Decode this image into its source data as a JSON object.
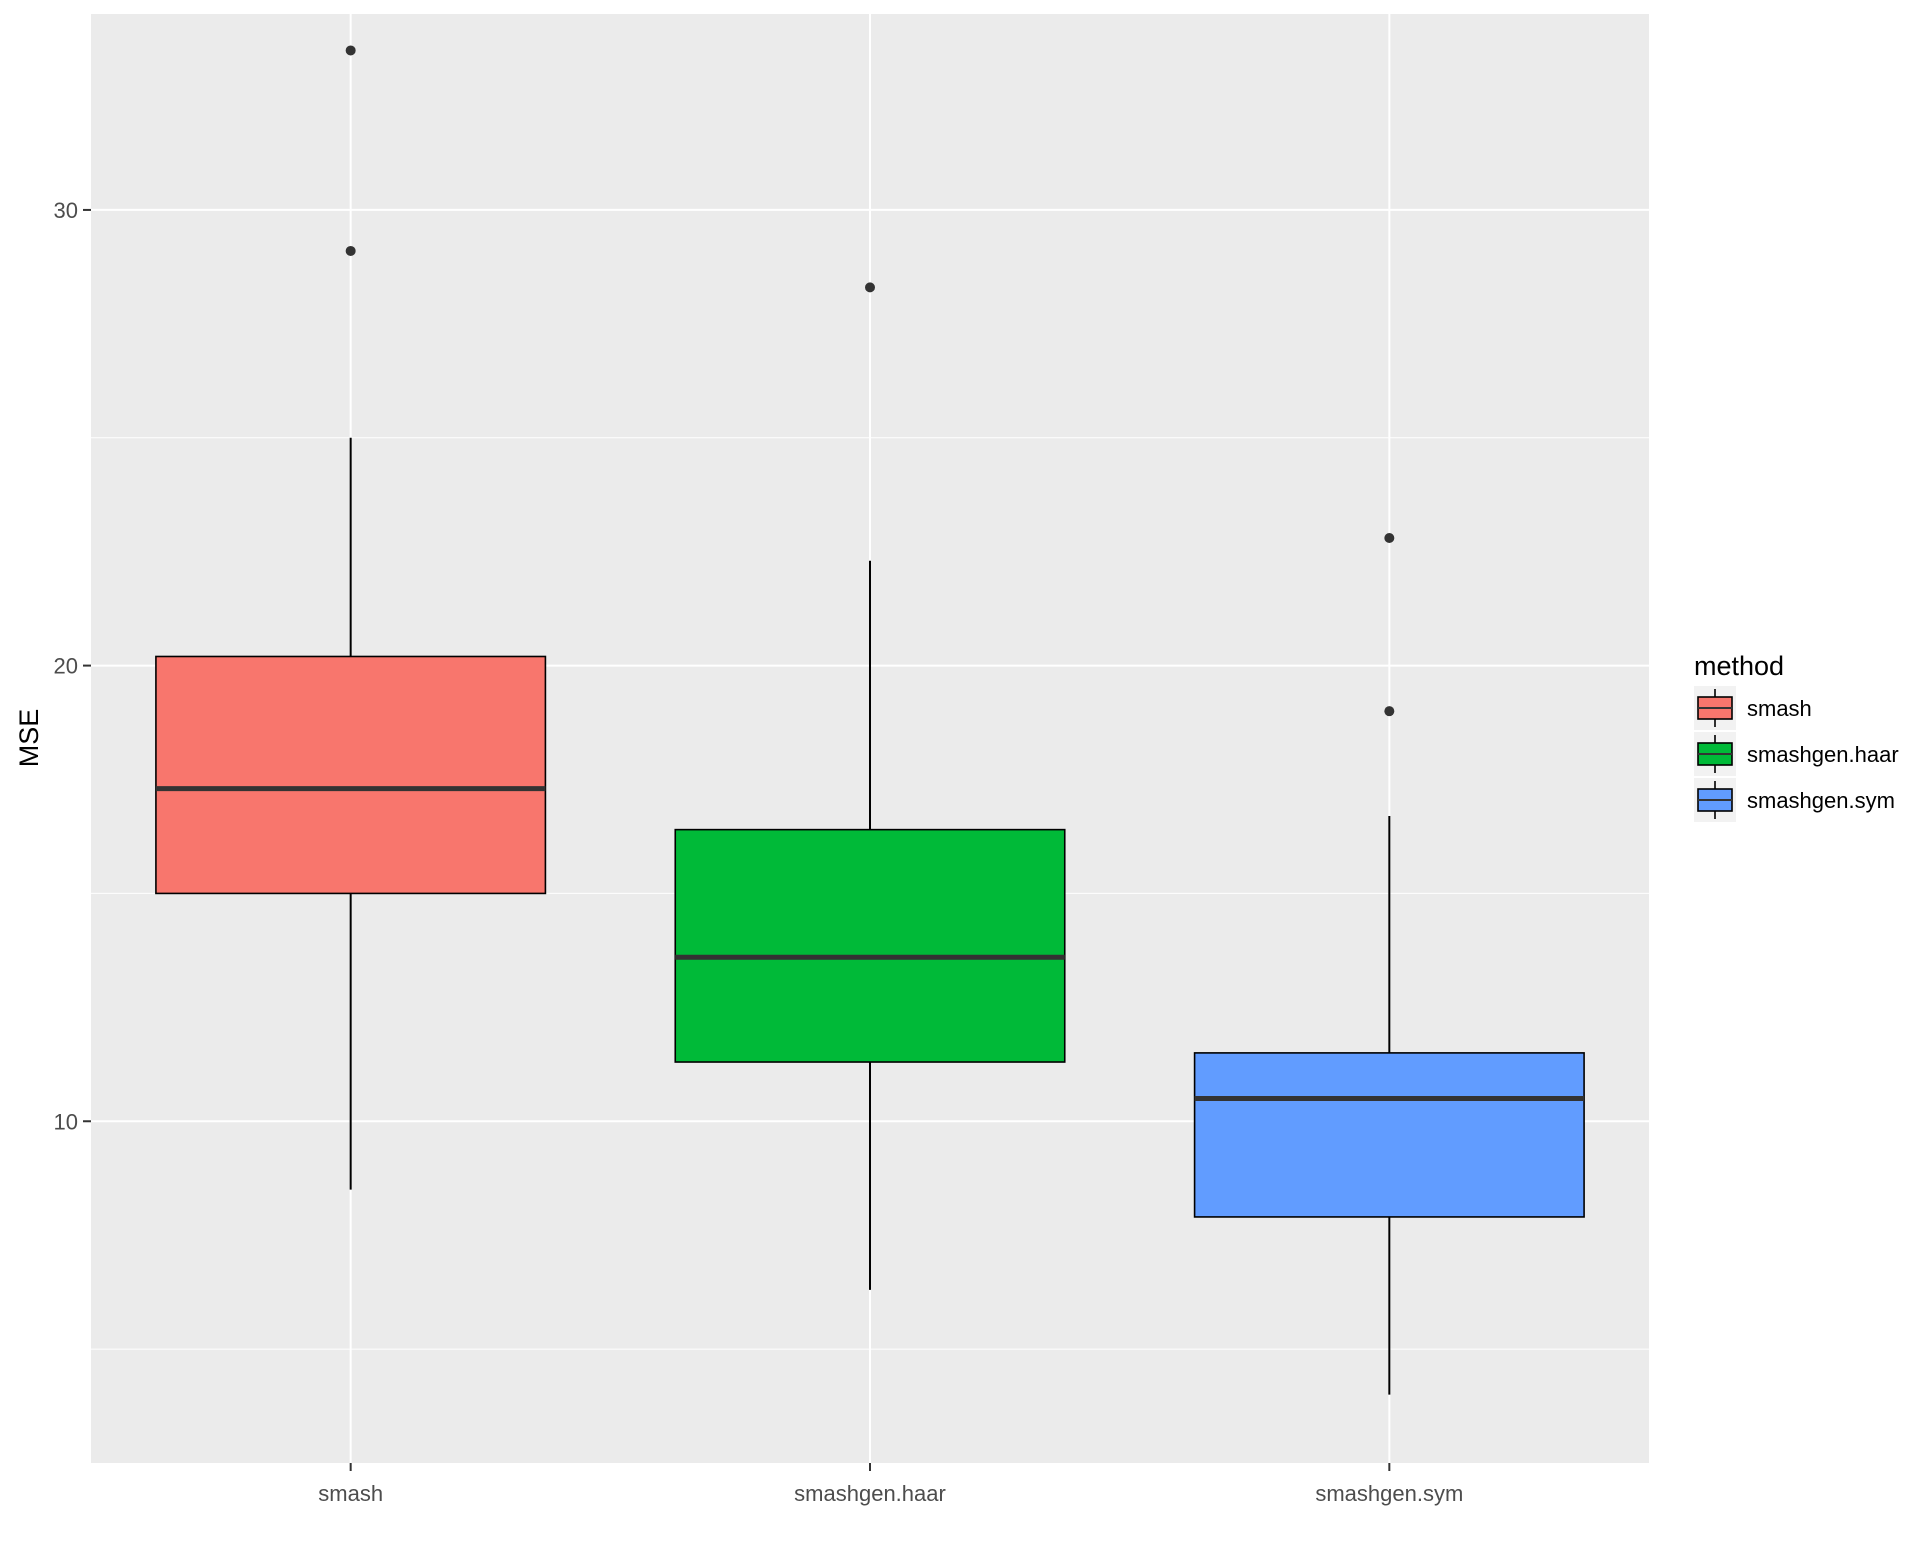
{
  "chart_data": {
    "type": "boxplot",
    "title": "",
    "xlabel": "",
    "ylabel": "MSE",
    "ylim": [
      2.5,
      34.3
    ],
    "yticks": [
      10,
      20,
      30
    ],
    "grid": true,
    "background": "#ebebeb",
    "legend": {
      "title": "method",
      "position": "right",
      "entries": [
        "smash",
        "smashgen.haar",
        "smashgen.sym"
      ]
    },
    "categories": [
      "smash",
      "smashgen.haar",
      "smashgen.sym"
    ],
    "series": [
      {
        "name": "smash",
        "color": "#F8766D",
        "whisker_low": 8.5,
        "q1": 15.0,
        "median": 17.3,
        "q3": 20.2,
        "whisker_high": 25.0,
        "outliers": [
          33.5,
          29.1
        ]
      },
      {
        "name": "smashgen.haar",
        "color": "#00BA38",
        "whisker_low": 6.3,
        "q1": 11.3,
        "median": 13.6,
        "q3": 16.4,
        "whisker_high": 22.3,
        "outliers": [
          28.3
        ]
      },
      {
        "name": "smashgen.sym",
        "color": "#619CFF",
        "whisker_low": 4.0,
        "q1": 7.9,
        "median": 10.5,
        "q3": 11.5,
        "whisker_high": 16.7,
        "outliers": [
          22.8,
          19.0
        ]
      }
    ]
  }
}
